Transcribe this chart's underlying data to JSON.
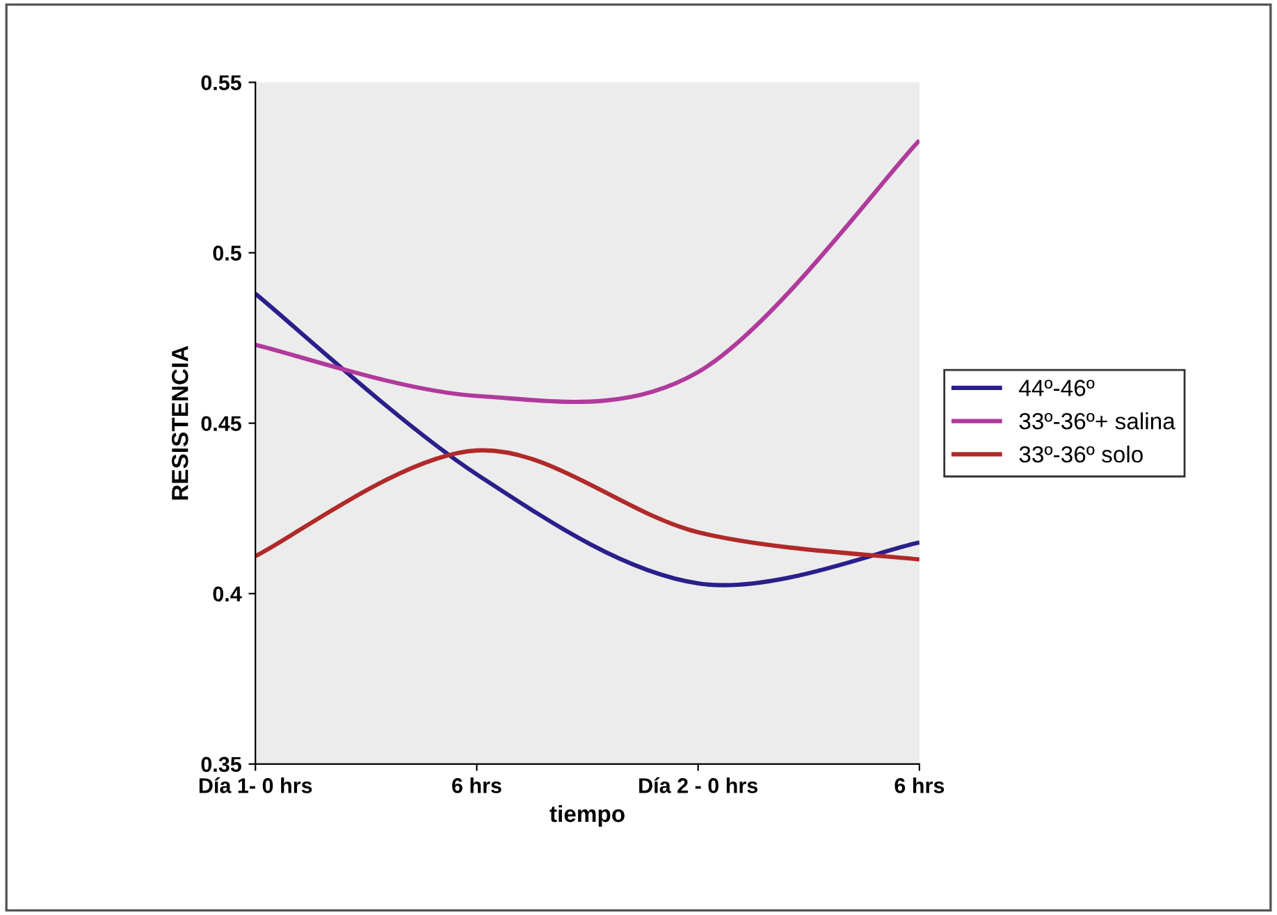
{
  "chart_data": {
    "type": "line",
    "xlabel": "tiempo",
    "ylabel": "RESISTENCIA",
    "categories": [
      "Día 1- 0 hrs",
      "6 hrs",
      "Día 2 - 0 hrs",
      "6 hrs"
    ],
    "series": [
      {
        "name": "44º-46º",
        "color": "#2a1f8a",
        "values": [
          0.488,
          0.435,
          0.403,
          0.415
        ]
      },
      {
        "name": "33º-36º+ salina",
        "color": "#b03a9c",
        "values": [
          0.473,
          0.458,
          0.465,
          0.533
        ]
      },
      {
        "name": "33º-36º solo",
        "color": "#b02a2a",
        "values": [
          0.411,
          0.442,
          0.418,
          0.41
        ]
      }
    ],
    "ylim": [
      0.35,
      0.55
    ],
    "yticks": [
      0.35,
      0.4,
      0.45,
      0.5,
      0.55
    ],
    "legend": "right",
    "marker": "none",
    "line_style": "solid"
  }
}
